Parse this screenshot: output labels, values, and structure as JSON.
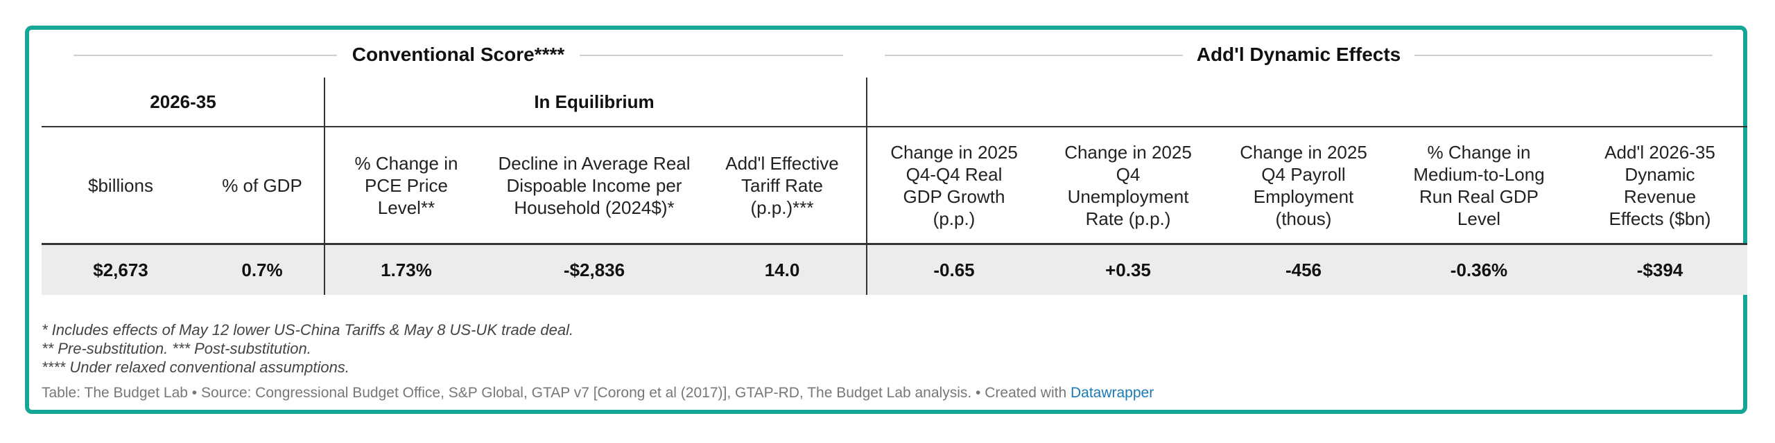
{
  "groups": {
    "conventional": "Conventional Score****",
    "dynamic": "Add'l Dynamic Effects"
  },
  "subgroups": {
    "period": "2026-35",
    "equilibrium": "In Equilibrium"
  },
  "columns": [
    "$billions",
    "% of GDP",
    "% Change in PCE Price Level**",
    "Decline in Average Real Dispoable Income per Household (2024$)*",
    "Add'l Effective Tariff Rate (p.p.)***",
    "Change in 2025 Q4-Q4 Real GDP Growth (p.p.)",
    "Change in 2025 Q4 Unemployment Rate (p.p.)",
    "Change in 2025 Q4 Payroll Employment (thous)",
    "% Change in Medium-to-Long Run Real GDP Level",
    "Add'l 2026-35 Dynamic Revenue Effects ($bn)"
  ],
  "values": [
    "$2,673",
    "0.7%",
    "1.73%",
    "-$2,836",
    "14.0",
    "-0.65",
    "+0.35",
    "-456",
    "-0.36%",
    "-$394"
  ],
  "notes": [
    "* Includes effects of May 12 lower US-China Tariffs & May 8 US-UK trade deal.",
    "** Pre-substitution. *** Post-substitution.",
    "**** Under relaxed conventional assumptions."
  ],
  "footer": {
    "text": "Table: The Budget Lab • Source: Congressional Budget Office, S&P Global, GTAP v7 [Corong et al (2017)], GTAP-RD, The Budget Lab analysis. • Created with ",
    "link": "Datawrapper"
  },
  "colors": {
    "frame": "#16a697",
    "link": "#1a7ab8",
    "data_row_bg": "#ececec"
  }
}
